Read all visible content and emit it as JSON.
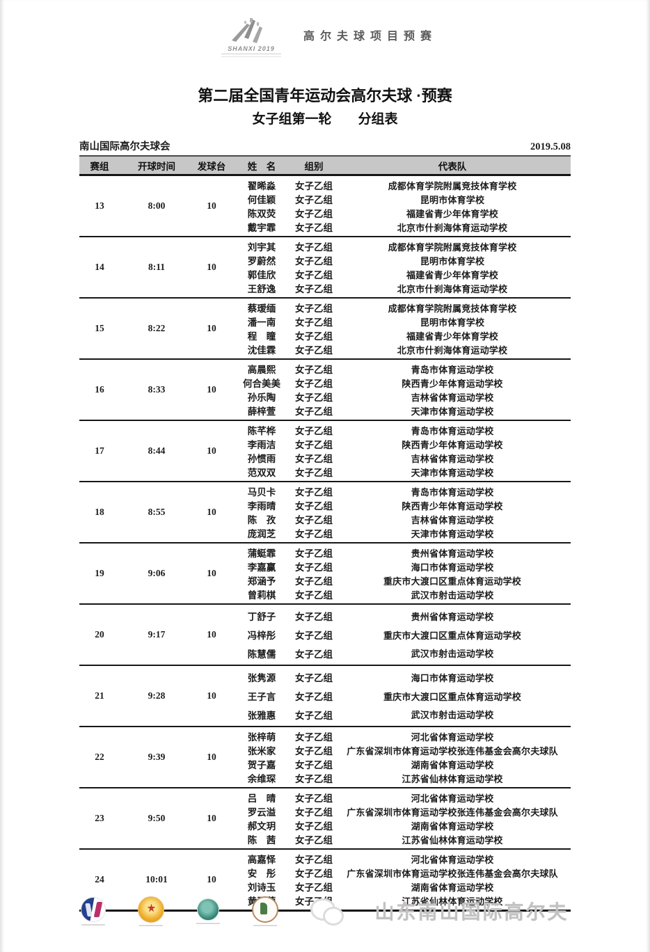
{
  "page": {
    "logo_caption": "SHANXI 2019",
    "event_label": "高尔夫球项目预赛",
    "title": "第二届全国青年运动会高尔夫球 ·预赛",
    "subtitle": "女子组第一轮　　分组表",
    "venue": "南山国际高尔夫球会",
    "date": "2019.5.08"
  },
  "table": {
    "columns": [
      "赛组",
      "开球时间",
      "发球台",
      "姓　名",
      "组别",
      "代表队"
    ],
    "groups": [
      {
        "group": "13",
        "time": "8:00",
        "tee": "10",
        "players": [
          {
            "name": "翟晞淼",
            "category": "女子乙组",
            "team": "成都体育学院附属竞技体育学校"
          },
          {
            "name": "何佳颖",
            "category": "女子乙组",
            "team": "昆明市体育学校"
          },
          {
            "name": "陈双荧",
            "category": "女子乙组",
            "team": "福建省青少年体育学校"
          },
          {
            "name": "戴宇霏",
            "category": "女子乙组",
            "team": "北京市什刹海体育运动学校"
          }
        ]
      },
      {
        "group": "14",
        "time": "8:11",
        "tee": "10",
        "players": [
          {
            "name": "刘宇其",
            "category": "女子乙组",
            "team": "成都体育学院附属竞技体育学校"
          },
          {
            "name": "罗蔚然",
            "category": "女子乙组",
            "team": "昆明市体育学校"
          },
          {
            "name": "郭佳欣",
            "category": "女子乙组",
            "team": "福建省青少年体育学校"
          },
          {
            "name": "王舒逸",
            "category": "女子乙组",
            "team": "北京市什刹海体育运动学校"
          }
        ]
      },
      {
        "group": "15",
        "time": "8:22",
        "tee": "10",
        "players": [
          {
            "name": "蔡瑷缅",
            "category": "女子乙组",
            "team": "成都体育学院附属竞技体育学校"
          },
          {
            "name": "潘一南",
            "category": "女子乙组",
            "team": "昆明市体育学校"
          },
          {
            "name": "程　瞳",
            "category": "女子乙组",
            "team": "福建省青少年体育学校"
          },
          {
            "name": "沈佳霖",
            "category": "女子乙组",
            "team": "北京市什刹海体育运动学校"
          }
        ]
      },
      {
        "group": "16",
        "time": "8:33",
        "tee": "10",
        "players": [
          {
            "name": "高晨熙",
            "category": "女子乙组",
            "team": "青岛市体育运动学校"
          },
          {
            "name": "何合美美",
            "category": "女子乙组",
            "team": "陕西青少年体育运动学校"
          },
          {
            "name": "孙乐陶",
            "category": "女子乙组",
            "team": "吉林省体育运动学校"
          },
          {
            "name": "薛梓萱",
            "category": "女子乙组",
            "team": "天津市体育运动学校"
          }
        ]
      },
      {
        "group": "17",
        "time": "8:44",
        "tee": "10",
        "players": [
          {
            "name": "陈芊桦",
            "category": "女子乙组",
            "team": "青岛市体育运动学校"
          },
          {
            "name": "李雨洁",
            "category": "女子乙组",
            "team": "陕西青少年体育运动学校"
          },
          {
            "name": "孙惯雨",
            "category": "女子乙组",
            "team": "吉林省体育运动学校"
          },
          {
            "name": "范双双",
            "category": "女子乙组",
            "team": "天津市体育运动学校"
          }
        ]
      },
      {
        "group": "18",
        "time": "8:55",
        "tee": "10",
        "players": [
          {
            "name": "马贝卡",
            "category": "女子乙组",
            "team": "青岛市体育运动学校"
          },
          {
            "name": "李雨晴",
            "category": "女子乙组",
            "team": "陕西青少年体育运动学校"
          },
          {
            "name": "陈　孜",
            "category": "女子乙组",
            "team": "吉林省体育运动学校"
          },
          {
            "name": "庞润芝",
            "category": "女子乙组",
            "team": "天津市体育运动学校"
          }
        ]
      },
      {
        "group": "19",
        "time": "9:06",
        "tee": "10",
        "players": [
          {
            "name": "蒲蜓霏",
            "category": "女子乙组",
            "team": "贵州省体育运动学校"
          },
          {
            "name": "李嘉赢",
            "category": "女子乙组",
            "team": "海口市体育运动学校"
          },
          {
            "name": "郑涵予",
            "category": "女子乙组",
            "team": "重庆市大渡口区重点体育运动学校"
          },
          {
            "name": "曾莉棋",
            "category": "女子乙组",
            "team": "武汉市射击运动学校"
          }
        ]
      },
      {
        "group": "20",
        "time": "9:17",
        "tee": "10",
        "players": [
          {
            "name": "丁舒子",
            "category": "女子乙组",
            "team": "贵州省体育运动学校"
          },
          {
            "name": "冯梓彤",
            "category": "女子乙组",
            "team": "重庆市大渡口区重点体育运动学校"
          },
          {
            "name": "陈慧儒",
            "category": "女子乙组",
            "team": "武汉市射击运动学校"
          }
        ]
      },
      {
        "group": "21",
        "time": "9:28",
        "tee": "10",
        "players": [
          {
            "name": "张隽源",
            "category": "女子乙组",
            "team": "海口市体育运动学校"
          },
          {
            "name": "王子言",
            "category": "女子乙组",
            "team": "重庆市大渡口区重点体育运动学校"
          },
          {
            "name": "张雅惠",
            "category": "女子乙组",
            "team": "武汉市射击运动学校"
          }
        ]
      },
      {
        "group": "22",
        "time": "9:39",
        "tee": "10",
        "players": [
          {
            "name": "张梓萌",
            "category": "女子乙组",
            "team": "河北省体育运动学校"
          },
          {
            "name": "张米家",
            "category": "女子乙组",
            "team": "广东省深圳市体育运动学校张连伟基金会高尔夫球队"
          },
          {
            "name": "贺子嘉",
            "category": "女子乙组",
            "team": "湖南省体育运动学校"
          },
          {
            "name": "余维琛",
            "category": "女子乙组",
            "team": "江苏省仙林体育运动学校"
          }
        ]
      },
      {
        "group": "23",
        "time": "9:50",
        "tee": "10",
        "players": [
          {
            "name": "吕　晴",
            "category": "女子乙组",
            "team": "河北省体育运动学校"
          },
          {
            "name": "罗云溢",
            "category": "女子乙组",
            "team": "广东省深圳市体育运动学校张连伟基金会高尔夫球队"
          },
          {
            "name": "郝文玥",
            "category": "女子乙组",
            "team": "湖南省体育运动学校"
          },
          {
            "name": "陈　茜",
            "category": "女子乙组",
            "team": "江苏省仙林体育运动学校"
          }
        ]
      },
      {
        "group": "24",
        "time": "10:01",
        "tee": "10",
        "players": [
          {
            "name": "高嘉怿",
            "category": "女子乙组",
            "team": "河北省体育运动学校"
          },
          {
            "name": "安　彤",
            "category": "女子乙组",
            "team": "广东省深圳市体育运动学校张连伟基金会高尔夫球队"
          },
          {
            "name": "刘诗玉",
            "category": "女子乙组",
            "team": "湖南省体育运动学校"
          },
          {
            "name": "黄亚萱",
            "category": "女子乙组",
            "team": "江苏省仙林体育运动学校"
          }
        ]
      }
    ]
  },
  "footer": {
    "logos": [
      "china-golf-association-logo",
      "youth-games-medal-logo",
      "shandong-golf-association-logo",
      "nanshan-club-badge-logo",
      "wechat-icon"
    ],
    "brand_text": "山东南山国际高尔夫"
  },
  "colors": {
    "table_header_bg": "#c7c7c7",
    "rule_line": "#161616",
    "brand_text_gray": "#c3c1c1",
    "cga_blue": "#23418f",
    "cga_magenta": "#bb2f6a",
    "medal_orange": "#eeaf2e",
    "sdga_teal": "#2c7f71"
  }
}
